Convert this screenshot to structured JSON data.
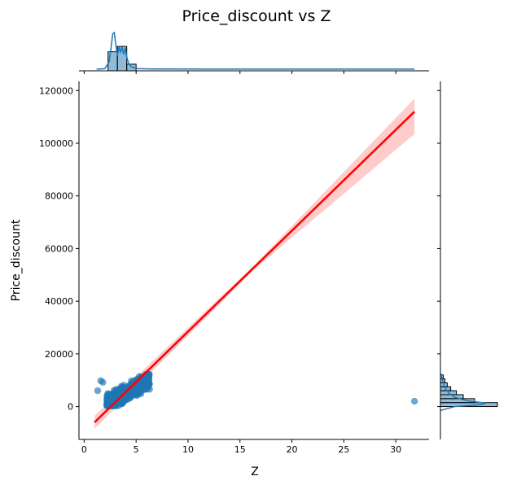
{
  "chart_data": {
    "type": "scatter",
    "title": "Price_discount vs Z",
    "xlabel": "Z",
    "ylabel": "Price_discount",
    "xlim": [
      -0.5,
      33.2
    ],
    "ylim": [
      -12500,
      123500
    ],
    "xticks": [
      0,
      5,
      10,
      15,
      20,
      25,
      30
    ],
    "yticks": [
      0,
      20000,
      40000,
      60000,
      80000,
      100000,
      120000
    ],
    "grid": false,
    "colors": {
      "points": "#1f77b4",
      "regression": "#ff0000",
      "ci_band": "#ffcccc",
      "hist_edge": "#000000"
    },
    "regression": {
      "x_start": 1.0,
      "y_start": -6000,
      "x_end": 31.8,
      "y_end": 112000,
      "ci_low_at_end": 103500,
      "ci_high_at_end": 117000
    },
    "outliers": [
      {
        "x": 1.6,
        "y": 9800
      },
      {
        "x": 1.8,
        "y": 9200
      },
      {
        "x": 1.3,
        "y": 6000
      },
      {
        "x": 31.8,
        "y": 2000
      }
    ],
    "cluster": {
      "x_min": 2.2,
      "x_max": 6.3,
      "y_min": 300,
      "y_max": 12200
    },
    "marginal_x": {
      "bins": [
        {
          "x0": 2.3,
          "x1": 3.2,
          "h": 0.78
        },
        {
          "x0": 3.2,
          "x1": 4.1,
          "h": 1.0
        },
        {
          "x0": 4.1,
          "x1": 5.0,
          "h": 0.27
        }
      ],
      "kde": [
        [
          1.2,
          0
        ],
        [
          2.0,
          0.02
        ],
        [
          2.4,
          0.3
        ],
        [
          2.6,
          0.9
        ],
        [
          2.75,
          1.45
        ],
        [
          2.9,
          1.5
        ],
        [
          3.05,
          1.0
        ],
        [
          3.2,
          0.55
        ],
        [
          3.35,
          0.9
        ],
        [
          3.5,
          0.7
        ],
        [
          3.65,
          0.92
        ],
        [
          3.8,
          0.6
        ],
        [
          3.95,
          0.88
        ],
        [
          4.1,
          0.5
        ],
        [
          4.3,
          0.2
        ],
        [
          4.6,
          0.08
        ],
        [
          5.2,
          0.02
        ],
        [
          6.5,
          0.01
        ],
        [
          12,
          0.005
        ],
        [
          31.8,
          0.005
        ]
      ]
    },
    "marginal_y": {
      "bins": [
        {
          "y0": 0,
          "y1": 1500,
          "w": 1.0
        },
        {
          "y0": 1500,
          "y1": 3000,
          "w": 0.6
        },
        {
          "y0": 3000,
          "y1": 4500,
          "w": 0.4
        },
        {
          "y0": 4500,
          "y1": 6000,
          "w": 0.28
        },
        {
          "y0": 6000,
          "y1": 7500,
          "w": 0.18
        },
        {
          "y0": 7500,
          "y1": 9000,
          "w": 0.12
        },
        {
          "y0": 9000,
          "y1": 10500,
          "w": 0.08
        },
        {
          "y0": 10500,
          "y1": 12000,
          "w": 0.05
        }
      ],
      "kde": [
        [
          -1500,
          0
        ],
        [
          0,
          0.3
        ],
        [
          700,
          0.85
        ],
        [
          1300,
          0.95
        ],
        [
          2200,
          0.55
        ],
        [
          3500,
          0.3
        ],
        [
          5000,
          0.18
        ],
        [
          7000,
          0.1
        ],
        [
          9000,
          0.06
        ],
        [
          11000,
          0.03
        ],
        [
          12500,
          0.01
        ]
      ]
    }
  }
}
